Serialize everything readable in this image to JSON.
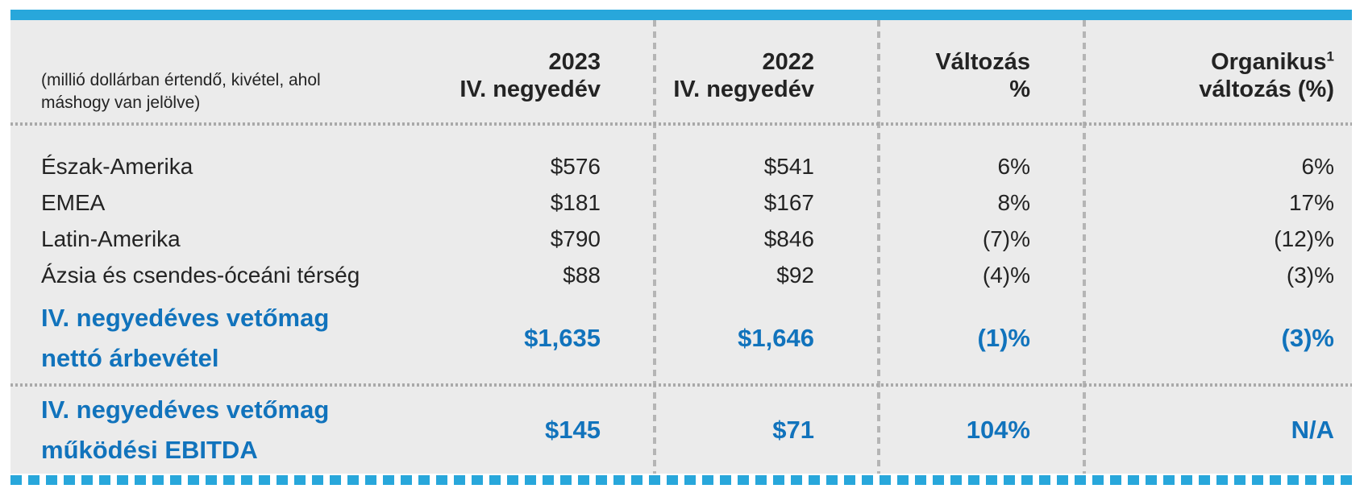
{
  "colors": {
    "accent_blue": "#28A7DB",
    "value_blue": "#1173BC",
    "body_text": "#232323",
    "table_bg": "#EBEBEB",
    "h_separator": "#A9A9A9",
    "v_separator": "#B5B5B5"
  },
  "table": {
    "note": "(millió dollárban értendő, kivétel, ahol máshogy van jelölve)",
    "headers": [
      {
        "line1": "2023",
        "line2": "IV. negyedév"
      },
      {
        "line1": "2022",
        "line2": "IV. negyedév"
      },
      {
        "line1": "Változás",
        "line2": "%"
      },
      {
        "line1": "Organikus",
        "sup": "1",
        "line2": "változás (%)"
      }
    ],
    "rows": [
      {
        "label": "Észak-Amerika",
        "q4_2023": "$576",
        "q4_2022": "$541",
        "change": "6%",
        "organic": "6%"
      },
      {
        "label": "EMEA",
        "q4_2023": "$181",
        "q4_2022": "$167",
        "change": "8%",
        "organic": "17%"
      },
      {
        "label": "Latin-Amerika",
        "q4_2023": "$790",
        "q4_2022": "$846",
        "change": "(7)%",
        "organic": "(12)%"
      },
      {
        "label": "Ázsia és csendes-óceáni térség",
        "q4_2023": "$88",
        "q4_2022": "$92",
        "change": "(4)%",
        "organic": "(3)%"
      }
    ],
    "summary_rows": [
      {
        "label_line1": "IV. negyedéves vetőmag",
        "label_line2": "nettó árbevétel",
        "q4_2023": "$1,635",
        "q4_2022": "$1,646",
        "change": "(1)%",
        "organic": "(3)%"
      },
      {
        "label_line1": "IV. negyedéves vetőmag",
        "label_line2": "működési EBITDA",
        "q4_2023": "$145",
        "q4_2022": "$71",
        "change": "104%",
        "organic": "N/A"
      }
    ]
  },
  "chart_data": {
    "type": "table",
    "title": "",
    "unit_note": "(millió dollárban értendő, kivétel, ahol máshogy van jelölve)",
    "columns": [
      "",
      "2023 IV. negyedév",
      "2022 IV. negyedév",
      "Változás %",
      "Organikus¹ változás (%)"
    ],
    "rows": [
      [
        "Észak-Amerika",
        576,
        541,
        "6%",
        "6%"
      ],
      [
        "EMEA",
        181,
        167,
        "8%",
        "17%"
      ],
      [
        "Latin-Amerika",
        790,
        846,
        "(7)%",
        "(12)%"
      ],
      [
        "Ázsia és csendes-óceáni térség",
        88,
        92,
        "(4)%",
        "(3)%"
      ],
      [
        "IV. negyedéves vetőmag nettó árbevétel",
        1635,
        1646,
        "(1)%",
        "(3)%"
      ],
      [
        "IV. negyedéves vetőmag működési EBITDA",
        145,
        71,
        "104%",
        "N/A"
      ]
    ]
  }
}
